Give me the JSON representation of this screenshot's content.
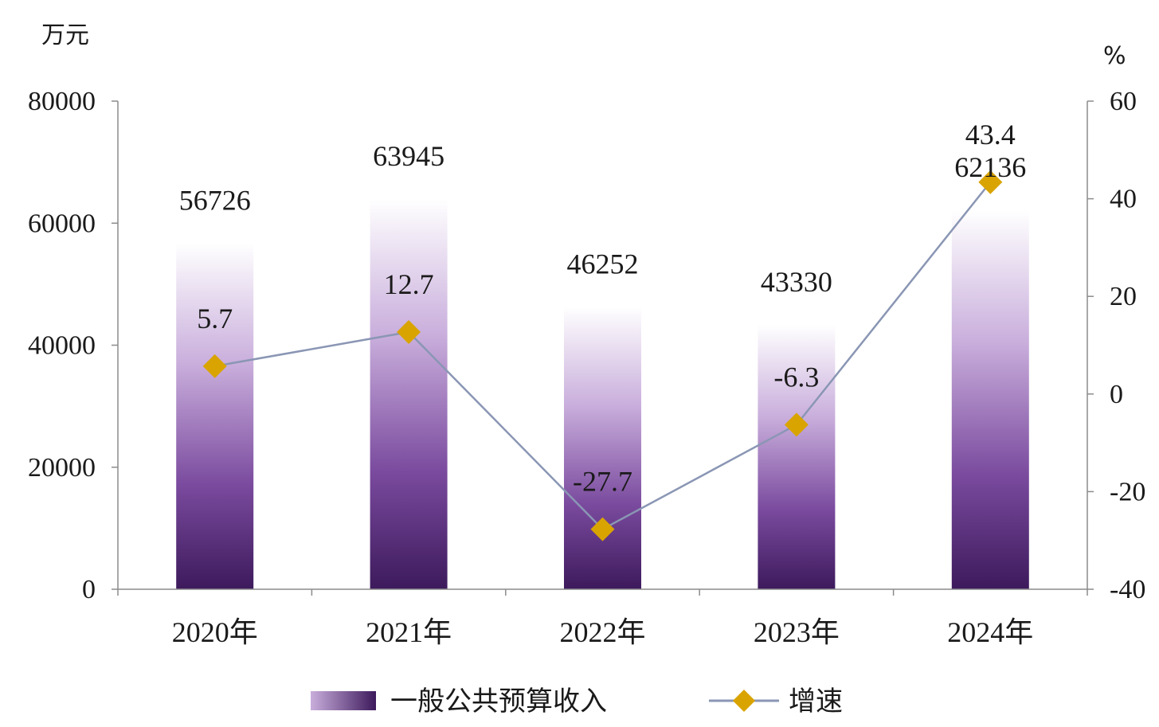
{
  "chart_data": {
    "type": "bar",
    "categories": [
      "2020年",
      "2021年",
      "2022年",
      "2023年",
      "2024年"
    ],
    "series": [
      {
        "name": "一般公共预算收入",
        "type": "bar",
        "axis": "left",
        "values": [
          56726,
          63945,
          46252,
          43330,
          62136
        ],
        "labels": [
          "56726",
          "63945",
          "46252",
          "43330",
          "62136"
        ],
        "color_top": "#ffffff",
        "color_bottom": "#3d1a5c"
      },
      {
        "name": "增速",
        "type": "line",
        "axis": "right",
        "values": [
          5.7,
          12.7,
          -27.7,
          -6.3,
          43.4
        ],
        "labels": [
          "5.7",
          "12.7",
          "-27.7",
          "-6.3",
          "43.4"
        ],
        "line_color": "#8a96b4",
        "marker": "diamond",
        "marker_color": "#d9a400"
      }
    ],
    "y_left": {
      "unit": "万元",
      "ylim": [
        0,
        80000
      ],
      "ticks": [
        0,
        20000,
        40000,
        60000,
        80000
      ],
      "tick_labels": [
        "0",
        "20000",
        "40000",
        "60000",
        "80000"
      ]
    },
    "y_right": {
      "unit": "%",
      "ylim": [
        -40,
        60
      ],
      "ticks": [
        -40,
        -20,
        0,
        20,
        40,
        60
      ],
      "tick_labels": [
        "-40",
        "-20",
        "0",
        "20",
        "40",
        "60"
      ]
    },
    "grid": false,
    "legend": {
      "position": "bottom",
      "items": [
        {
          "label": "一般公共预算收入",
          "kind": "bar"
        },
        {
          "label": "增速",
          "kind": "line"
        }
      ]
    }
  }
}
